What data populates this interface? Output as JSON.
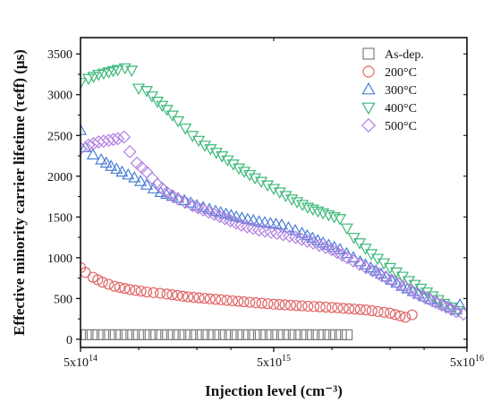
{
  "chart_data": {
    "type": "scatter",
    "title": "",
    "xlabel": "Injection level (cm⁻³)",
    "ylabel": "Effective minority carrier lifetime (τeff) (μs)",
    "x_scale": "log",
    "xlim": [
      500000000000000.0,
      50000000000000000
    ],
    "ylim": [
      -100,
      3700
    ],
    "x_ticks": [
      {
        "value": 500000000000000.0,
        "label": "5x10"
      },
      {
        "value": 5000000000000000.0,
        "label": "5x10"
      },
      {
        "value": 50000000000000000,
        "label": "5x10"
      }
    ],
    "x_tick_exponents": [
      "14",
      "15",
      "16"
    ],
    "y_ticks": [
      0,
      500,
      1000,
      1500,
      2000,
      2500,
      3000,
      3500
    ],
    "grid": false,
    "legend_position": "top-right",
    "series": [
      {
        "name": "As-dep.",
        "marker": "square",
        "color": "#7f7f7f",
        "points": [
          [
            500000000000000.0,
            55
          ],
          [
            1.2e+16,
            55
          ]
        ]
      },
      {
        "name": "200°C",
        "marker": "circle",
        "color": "#e06666",
        "points": [
          [
            500000000000000.0,
            880
          ],
          [
            530000000000000.0,
            820
          ],
          [
            580000000000000.0,
            760
          ],
          [
            650000000000000.0,
            700
          ],
          [
            750000000000000.0,
            650
          ],
          [
            900000000000000.0,
            610
          ],
          [
            1100000000000000.0,
            580
          ],
          [
            1400000000000000.0,
            555
          ],
          [
            1800000000000000.0,
            520
          ],
          [
            2500000000000000.0,
            490
          ],
          [
            3500000000000000.0,
            460
          ],
          [
            5000000000000000.0,
            430
          ],
          [
            7000000000000000.0,
            410
          ],
          [
            1e+16,
            390
          ],
          [
            1.5e+16,
            360
          ],
          [
            2e+16,
            320
          ],
          [
            2.4e+16,
            270
          ],
          [
            2.6e+16,
            300
          ]
        ]
      },
      {
        "name": "300°C",
        "marker": "triangle-up",
        "color": "#4a7fd6",
        "points": [
          [
            500000000000000.0,
            2560
          ],
          [
            530000000000000.0,
            2350
          ],
          [
            580000000000000.0,
            2260
          ],
          [
            640000000000000.0,
            2200
          ],
          [
            720000000000000.0,
            2120
          ],
          [
            820000000000000.0,
            2050
          ],
          [
            950000000000000.0,
            1980
          ],
          [
            1100000000000000.0,
            1890
          ],
          [
            1300000000000000.0,
            1800
          ],
          [
            1600000000000000.0,
            1730
          ],
          [
            2000000000000000.0,
            1640
          ],
          [
            2500000000000000.0,
            1570
          ],
          [
            3200000000000000.0,
            1500
          ],
          [
            4200000000000000.0,
            1440
          ],
          [
            5500000000000000.0,
            1400
          ],
          [
            7000000000000000.0,
            1300
          ],
          [
            9000000000000000.0,
            1180
          ],
          [
            1.1e+16,
            1100
          ],
          [
            1.4e+16,
            950
          ],
          [
            1.8e+16,
            800
          ],
          [
            2.3e+16,
            650
          ],
          [
            3e+16,
            520
          ],
          [
            3.8e+16,
            420
          ],
          [
            4.4e+16,
            360
          ],
          [
            4.6e+16,
            420
          ]
        ]
      },
      {
        "name": "400°C",
        "marker": "triangle-down",
        "color": "#3cb878",
        "points": [
          [
            500000000000000.0,
            3150
          ],
          [
            550000000000000.0,
            3200
          ],
          [
            620000000000000.0,
            3250
          ],
          [
            700000000000000.0,
            3280
          ],
          [
            780000000000000.0,
            3310
          ],
          [
            850000000000000.0,
            3330
          ],
          [
            920000000000000.0,
            3300
          ],
          [
            1000000000000000.0,
            3080
          ],
          [
            1100000000000000.0,
            3050
          ],
          [
            1250000000000000.0,
            2920
          ],
          [
            1400000000000000.0,
            2820
          ],
          [
            1600000000000000.0,
            2680
          ],
          [
            1900000000000000.0,
            2500
          ],
          [
            2200000000000000.0,
            2380
          ],
          [
            2700000000000000.0,
            2250
          ],
          [
            3300000000000000.0,
            2100
          ],
          [
            4000000000000000.0,
            1980
          ],
          [
            5000000000000000.0,
            1850
          ],
          [
            6200000000000000.0,
            1720
          ],
          [
            7500000000000000.0,
            1620
          ],
          [
            9000000000000000.0,
            1550
          ],
          [
            1.1e+16,
            1480
          ],
          [
            1.3e+16,
            1250
          ],
          [
            1.6e+16,
            1050
          ],
          [
            2e+16,
            880
          ],
          [
            2.5e+16,
            720
          ],
          [
            3.1e+16,
            580
          ],
          [
            3.8e+16,
            440
          ],
          [
            4.5e+16,
            350
          ]
        ]
      },
      {
        "name": "500°C",
        "marker": "diamond",
        "color": "#b07fe0",
        "points": [
          [
            500000000000000.0,
            2340
          ],
          [
            550000000000000.0,
            2380
          ],
          [
            620000000000000.0,
            2420
          ],
          [
            700000000000000.0,
            2440
          ],
          [
            780000000000000.0,
            2460
          ],
          [
            840000000000000.0,
            2480
          ],
          [
            900000000000000.0,
            2300
          ],
          [
            980000000000000.0,
            2160
          ],
          [
            1100000000000000.0,
            2050
          ],
          [
            1250000000000000.0,
            1900
          ],
          [
            1400000000000000.0,
            1800
          ],
          [
            1600000000000000.0,
            1720
          ],
          [
            1900000000000000.0,
            1640
          ],
          [
            2300000000000000.0,
            1560
          ],
          [
            2800000000000000.0,
            1480
          ],
          [
            3400000000000000.0,
            1400
          ],
          [
            4200000000000000.0,
            1340
          ],
          [
            5200000000000000.0,
            1300
          ],
          [
            6500000000000000.0,
            1250
          ],
          [
            8000000000000000.0,
            1180
          ],
          [
            1e+16,
            1100
          ],
          [
            1.2e+16,
            1000
          ],
          [
            1.5e+16,
            880
          ],
          [
            1.9e+16,
            760
          ],
          [
            2.4e+16,
            640
          ],
          [
            3e+16,
            520
          ],
          [
            3.7e+16,
            420
          ],
          [
            4.4e+16,
            340
          ],
          [
            4.8e+16,
            310
          ]
        ]
      }
    ]
  }
}
